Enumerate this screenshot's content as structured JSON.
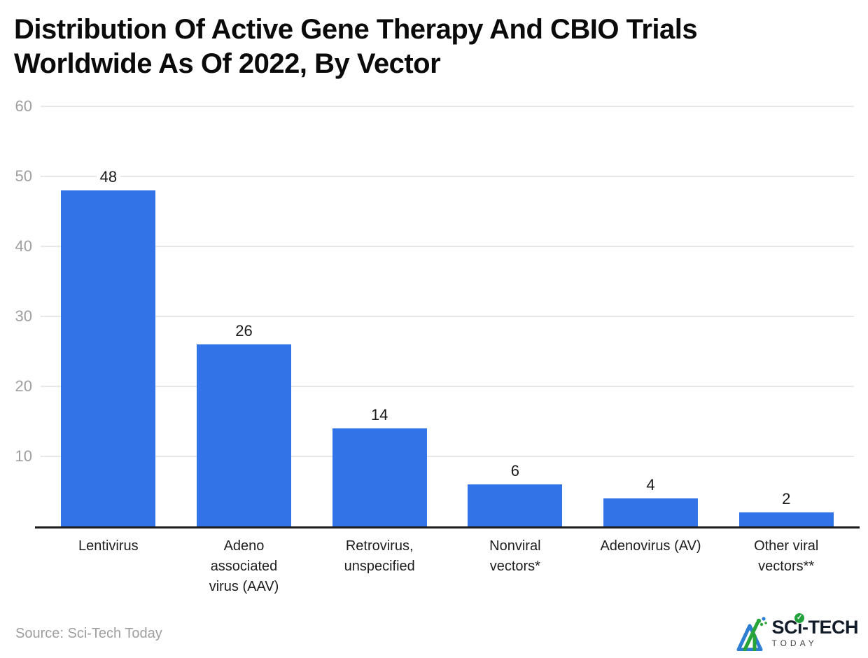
{
  "header": {
    "title": "Distribution Of Active Gene Therapy And CBIO Trials\nWorldwide As Of 2022, By Vector"
  },
  "footer": {
    "source": "Source: Sci-Tech Today",
    "logo": {
      "brand_top_pre": "SC",
      "brand_top_i": "i",
      "brand_top_post": "-TECH",
      "brand_bottom": "TODAY",
      "check": "✓"
    }
  },
  "chart_data": {
    "type": "bar",
    "title": "Distribution Of Active Gene Therapy And CBIO Trials Worldwide As Of 2022, By Vector",
    "categories": [
      "Lentivirus",
      "Adeno associated virus (AAV)",
      "Retrovirus, unspecified",
      "Nonviral vectors*",
      "Adenovirus (AV)",
      "Other viral vectors**"
    ],
    "category_display": [
      "Lentivirus",
      "Adeno\nassociated\nvirus (AAV)",
      "Retrovirus,\nunspecified",
      "Nonviral\nvectors*",
      "Adenovirus (AV)",
      "Other viral\nvectors**"
    ],
    "values": [
      48,
      26,
      14,
      6,
      4,
      2
    ],
    "yticks": [
      60,
      50,
      40,
      30,
      20,
      10
    ],
    "ylim": [
      0,
      60
    ],
    "xlabel": "",
    "ylabel": "",
    "grid": true,
    "legend": false,
    "value_labels": true,
    "colors": {
      "bar": "#3373e8",
      "grid": "#e8e8e8",
      "axis_line": "#1b1b1b",
      "tick_label": "#9e9e9e",
      "value_label": "#1a1a1a",
      "category_label": "#1d1d1d"
    }
  }
}
